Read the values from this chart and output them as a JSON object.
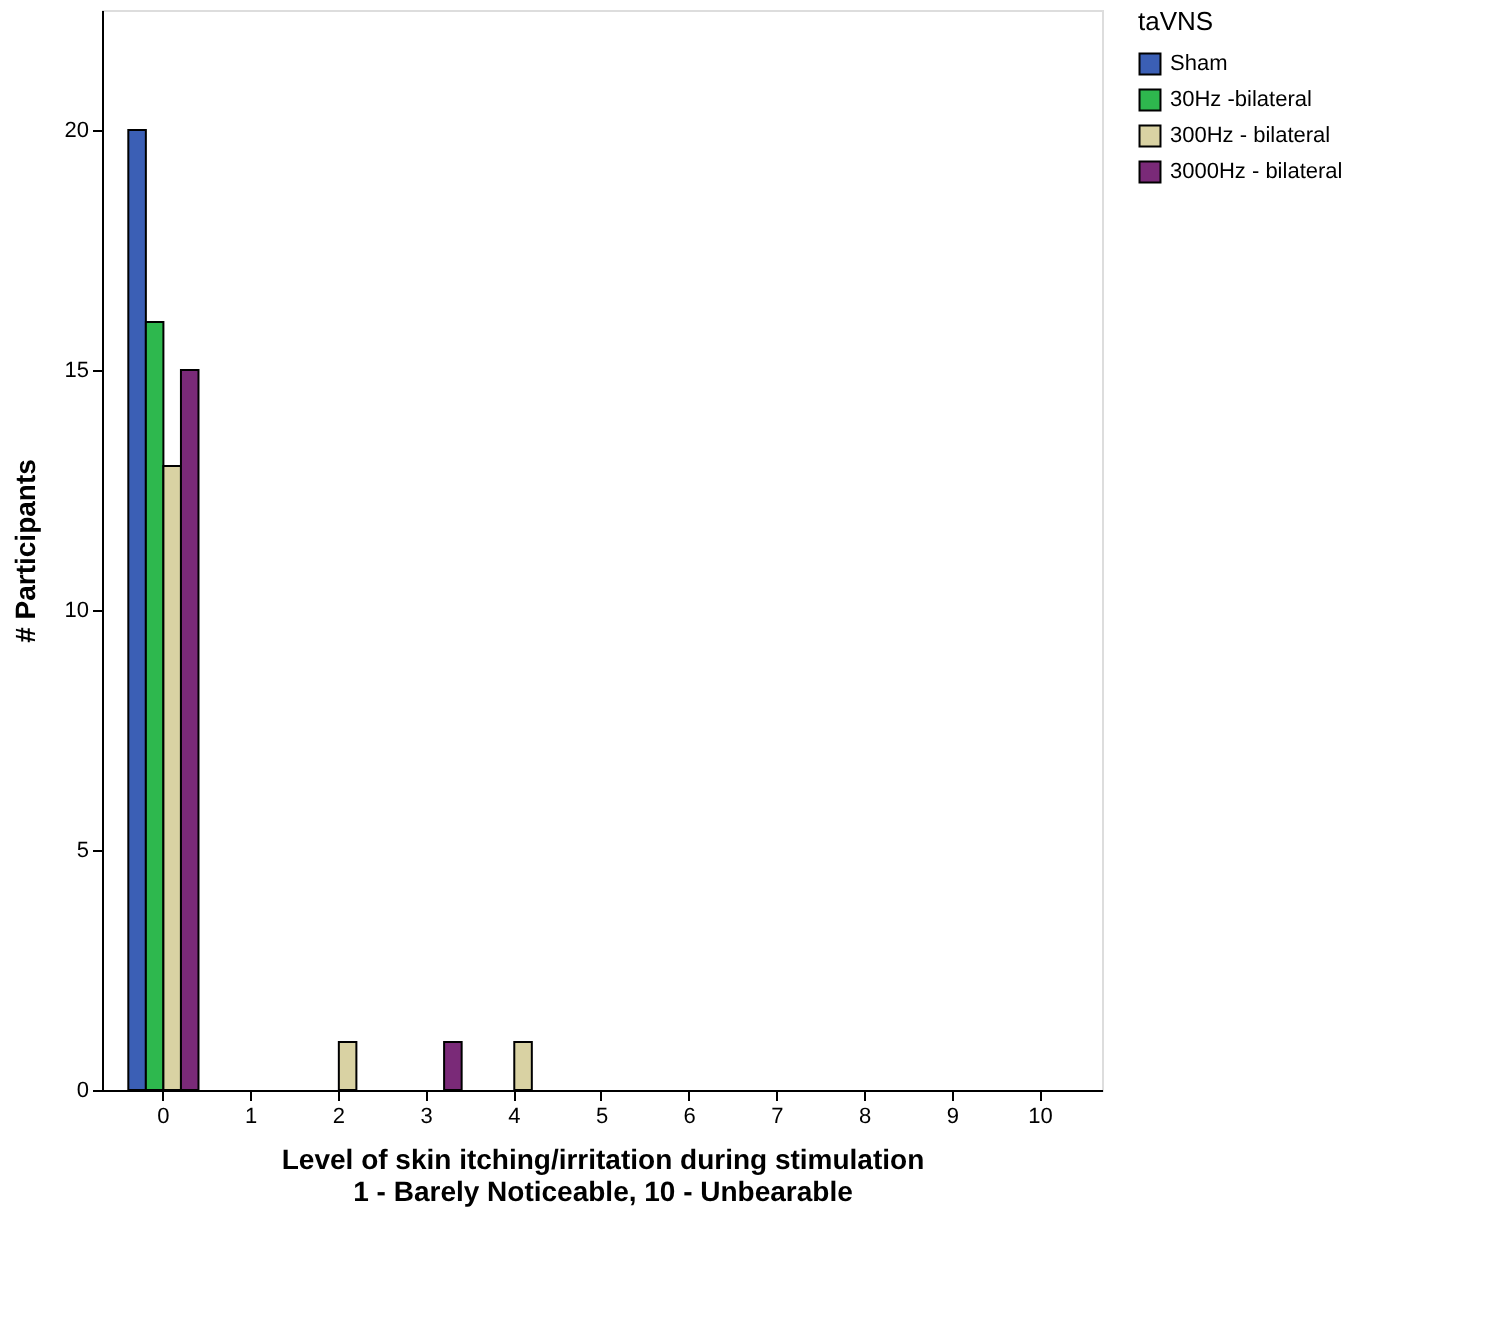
{
  "chart_data": {
    "type": "bar",
    "xlabel": "Level of skin itching/irritation during stimulation\n1 - Barely Noticeable, 10 - Unbearable",
    "ylabel": "# Participants",
    "legend_title": "taVNS",
    "legend": "top right",
    "categories": [
      "0",
      "1",
      "2",
      "3",
      "4",
      "5",
      "6",
      "7",
      "8",
      "9",
      "10"
    ],
    "series": [
      {
        "name": "Sham",
        "color": "#3b5fb5",
        "values": [
          20,
          null,
          null,
          null,
          null,
          null,
          null,
          null,
          null,
          null,
          null
        ]
      },
      {
        "name": "30Hz -bilateral",
        "color": "#2eb84e",
        "values": [
          16,
          null,
          null,
          null,
          null,
          null,
          null,
          null,
          null,
          null,
          null
        ]
      },
      {
        "name": "300Hz - bilateral",
        "color": "#d9d2a3",
        "values": [
          13,
          null,
          1,
          null,
          1,
          null,
          null,
          null,
          null,
          null,
          null
        ]
      },
      {
        "name": "3000Hz - bilateral",
        "color": "#7a2a78",
        "values": [
          15,
          null,
          null,
          1,
          null,
          null,
          null,
          null,
          null,
          null,
          null
        ]
      }
    ],
    "ylim": [
      0,
      22.5
    ],
    "yticks": [
      0,
      5,
      10,
      15,
      20
    ],
    "grid": false
  }
}
